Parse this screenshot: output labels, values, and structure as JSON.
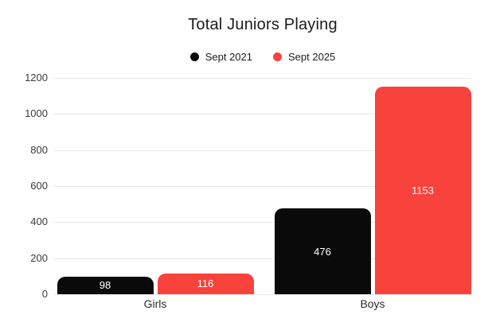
{
  "chart_data": {
    "type": "bar",
    "title": "Total Juniors Playing",
    "categories": [
      "Girls",
      "Boys"
    ],
    "series": [
      {
        "name": "Sept 2021",
        "color": "#0a0a0a",
        "values": [
          98,
          476
        ]
      },
      {
        "name": "Sept 2025",
        "color": "#f8423c",
        "values": [
          116,
          1153
        ]
      }
    ],
    "ylim": [
      0,
      1200
    ],
    "yticks": [
      0,
      200,
      400,
      600,
      800,
      1000,
      1200
    ],
    "grid": true,
    "legend_position": "top",
    "xlabel": "",
    "ylabel": "",
    "bar_label_color": "#ffffff",
    "gridline_color": "#e7e7e7"
  }
}
